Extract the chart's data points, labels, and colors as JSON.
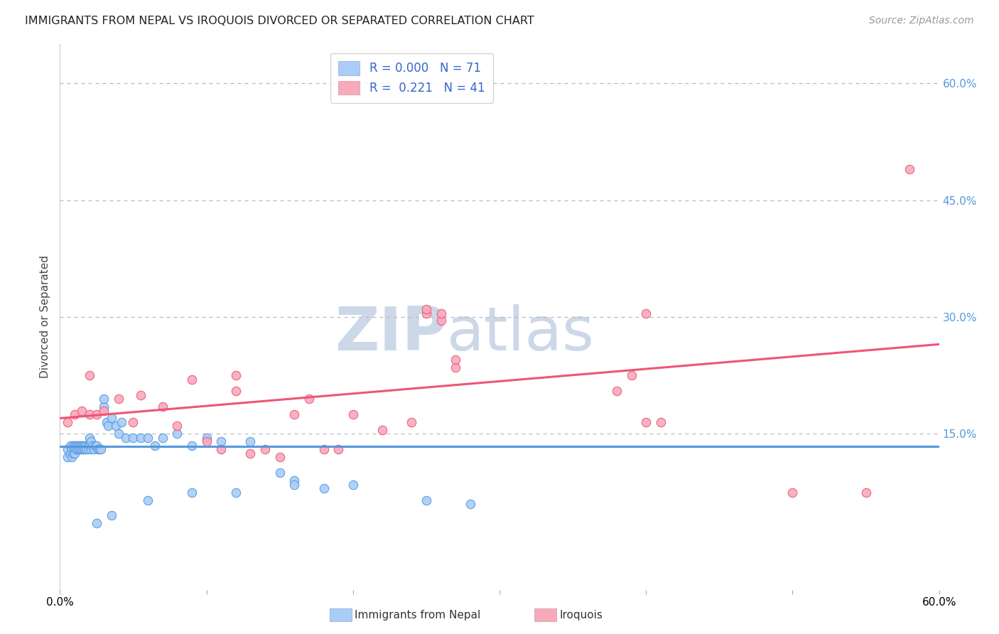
{
  "title": "IMMIGRANTS FROM NEPAL VS IROQUOIS DIVORCED OR SEPARATED CORRELATION CHART",
  "source": "Source: ZipAtlas.com",
  "ylabel": "Divorced or Separated",
  "xlim": [
    0.0,
    0.6
  ],
  "ylim": [
    -0.05,
    0.65
  ],
  "legend_blue_R": "R = 0.000",
  "legend_blue_N": "N = 71",
  "legend_pink_R": "R =  0.221",
  "legend_pink_N": "N = 41",
  "blue_color": "#aaccf8",
  "pink_color": "#f8aabb",
  "blue_line_color": "#5599dd",
  "pink_line_color": "#ee5577",
  "legend_text_color": "#3366cc",
  "watermark_zip": "ZIP",
  "watermark_atlas": "atlas",
  "watermark_color": "#ccd8e8",
  "blue_scatter_x": [
    0.005,
    0.005,
    0.007,
    0.007,
    0.008,
    0.008,
    0.009,
    0.009,
    0.01,
    0.01,
    0.01,
    0.011,
    0.011,
    0.012,
    0.012,
    0.013,
    0.013,
    0.014,
    0.014,
    0.015,
    0.015,
    0.016,
    0.016,
    0.017,
    0.017,
    0.018,
    0.018,
    0.019,
    0.019,
    0.02,
    0.02,
    0.021,
    0.021,
    0.022,
    0.023,
    0.024,
    0.025,
    0.026,
    0.027,
    0.028,
    0.03,
    0.03,
    0.032,
    0.033,
    0.035,
    0.038,
    0.04,
    0.042,
    0.045,
    0.05,
    0.055,
    0.06,
    0.065,
    0.07,
    0.08,
    0.09,
    0.1,
    0.11,
    0.13,
    0.15,
    0.16,
    0.18,
    0.2,
    0.25,
    0.28,
    0.16,
    0.12,
    0.09,
    0.06,
    0.035,
    0.025
  ],
  "blue_scatter_y": [
    0.13,
    0.12,
    0.135,
    0.125,
    0.13,
    0.12,
    0.135,
    0.125,
    0.135,
    0.13,
    0.125,
    0.135,
    0.13,
    0.135,
    0.13,
    0.135,
    0.13,
    0.135,
    0.13,
    0.135,
    0.13,
    0.135,
    0.13,
    0.135,
    0.13,
    0.135,
    0.13,
    0.135,
    0.13,
    0.145,
    0.135,
    0.14,
    0.13,
    0.135,
    0.13,
    0.135,
    0.135,
    0.13,
    0.13,
    0.13,
    0.185,
    0.195,
    0.165,
    0.16,
    0.17,
    0.16,
    0.15,
    0.165,
    0.145,
    0.145,
    0.145,
    0.145,
    0.135,
    0.145,
    0.15,
    0.135,
    0.145,
    0.14,
    0.14,
    0.1,
    0.09,
    0.08,
    0.085,
    0.065,
    0.06,
    0.085,
    0.075,
    0.075,
    0.065,
    0.045,
    0.035
  ],
  "pink_scatter_x": [
    0.005,
    0.01,
    0.015,
    0.02,
    0.02,
    0.025,
    0.03,
    0.04,
    0.05,
    0.055,
    0.07,
    0.08,
    0.09,
    0.1,
    0.11,
    0.12,
    0.12,
    0.13,
    0.14,
    0.15,
    0.16,
    0.17,
    0.18,
    0.19,
    0.2,
    0.22,
    0.24,
    0.25,
    0.25,
    0.26,
    0.26,
    0.27,
    0.27,
    0.38,
    0.39,
    0.4,
    0.4,
    0.41,
    0.5,
    0.55,
    0.58
  ],
  "pink_scatter_y": [
    0.165,
    0.175,
    0.18,
    0.225,
    0.175,
    0.175,
    0.18,
    0.195,
    0.165,
    0.2,
    0.185,
    0.16,
    0.22,
    0.14,
    0.13,
    0.205,
    0.225,
    0.125,
    0.13,
    0.12,
    0.175,
    0.195,
    0.13,
    0.13,
    0.175,
    0.155,
    0.165,
    0.305,
    0.31,
    0.295,
    0.305,
    0.235,
    0.245,
    0.205,
    0.225,
    0.305,
    0.165,
    0.165,
    0.075,
    0.075,
    0.49
  ],
  "blue_line_x": [
    0.0,
    0.6
  ],
  "blue_line_y": [
    0.134,
    0.134
  ],
  "pink_line_x": [
    0.0,
    0.6
  ],
  "pink_line_y": [
    0.17,
    0.265
  ],
  "dashed_blue_line_y": 0.134,
  "grid_dashes": [
    4,
    4
  ],
  "grid_color": "#bbbbbb",
  "dashed_blue_color": "#88aadd",
  "right_ytick_color": "#5599dd",
  "title_color": "#222222",
  "title_fontsize": 11.5,
  "source_fontsize": 10,
  "marker_size": 80,
  "ytick_gridlines": [
    0.15,
    0.3,
    0.45,
    0.6
  ]
}
